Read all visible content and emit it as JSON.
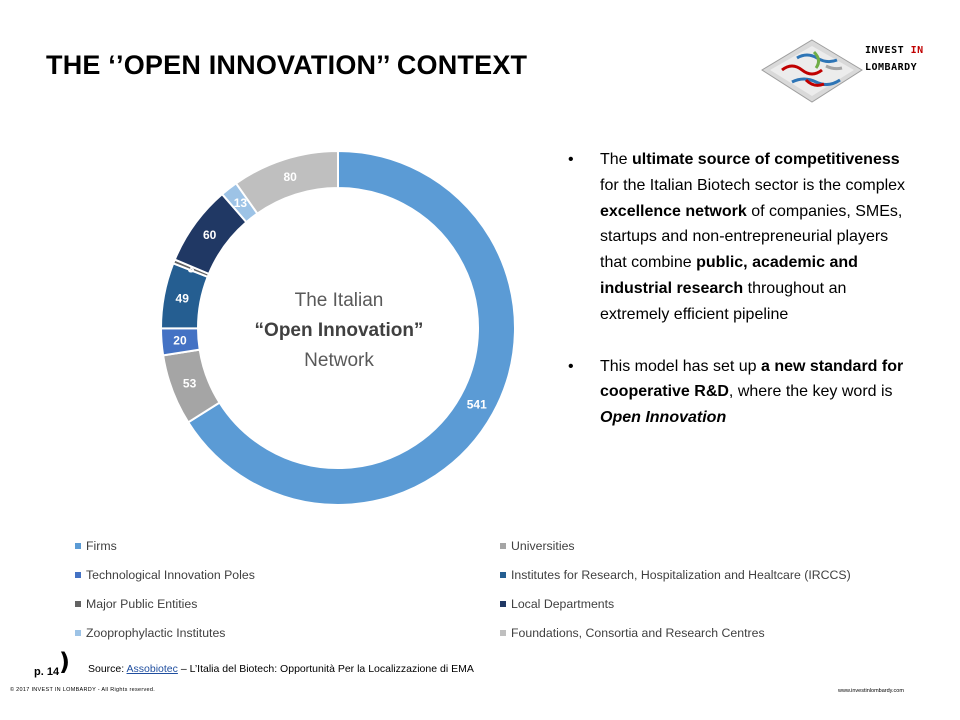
{
  "title": "THE ‘’OPEN INNOVATION’’ CONTEXT",
  "logo": {
    "line1_a": "INVEST ",
    "line1_b": "IN",
    "line2": "LOMBARDY"
  },
  "center_label": {
    "line1": "The Italian",
    "line2": "“Open Innovation”",
    "line3": "Network"
  },
  "bullets": [
    {
      "parts": [
        {
          "text": "The ",
          "bold": false
        },
        {
          "text": "ultimate source of competitiveness",
          "bold": true
        },
        {
          "text": " for the Italian Biotech sector is the complex ",
          "bold": false
        },
        {
          "text": "excellence network",
          "bold": true
        },
        {
          "text": " of companies, SMEs, startups and non-entrepreneurial  players that combine ",
          "bold": false
        },
        {
          "text": "public, academic and industrial  research",
          "bold": true
        },
        {
          "text": " throughout an extremely efficient pipeline",
          "bold": false
        }
      ]
    },
    {
      "parts": [
        {
          "text": "This model has set up ",
          "bold": false
        },
        {
          "text": "a new standard  for cooperative R&D",
          "bold": true
        },
        {
          "text": ", where the key word is ",
          "bold": false
        },
        {
          "text": "Open Innovation",
          "bold": true,
          "italic": true
        }
      ]
    }
  ],
  "chart_data": {
    "type": "pie",
    "subtype": "donut",
    "categories": [
      "Firms",
      "Universities",
      "Technological Innovation Poles",
      "Institutes for Research, Hospitalization and Healtcare (IRCCS)",
      "Major Public Entities",
      "Local Departments",
      "Zooprophylactic Institutes",
      "Foundations, Consortia and Research Centres"
    ],
    "values": [
      541,
      53,
      20,
      49,
      3,
      60,
      13,
      80
    ],
    "data_labels": [
      "541",
      "53",
      "20",
      "49",
      "3",
      "60",
      "13",
      "80"
    ],
    "colors": [
      "#5b9bd5",
      "#a5a5a5",
      "#4472c4",
      "#255e91",
      "#636363",
      "#203864",
      "#9dc3e6",
      "#bfbfbf"
    ],
    "legend_placement": "bottom"
  },
  "source": {
    "prefix": "Source: ",
    "link": "Assobiotec",
    "suffix": " – L’Italia del Biotech: Opportunità Per la Localizzazione di EMA"
  },
  "page_label": "p. 14",
  "page_brace": ")",
  "copyright": "© 2017 INVEST IN LOMBARDY - All Rights reserved.",
  "website": "www.investinlombardy.com"
}
